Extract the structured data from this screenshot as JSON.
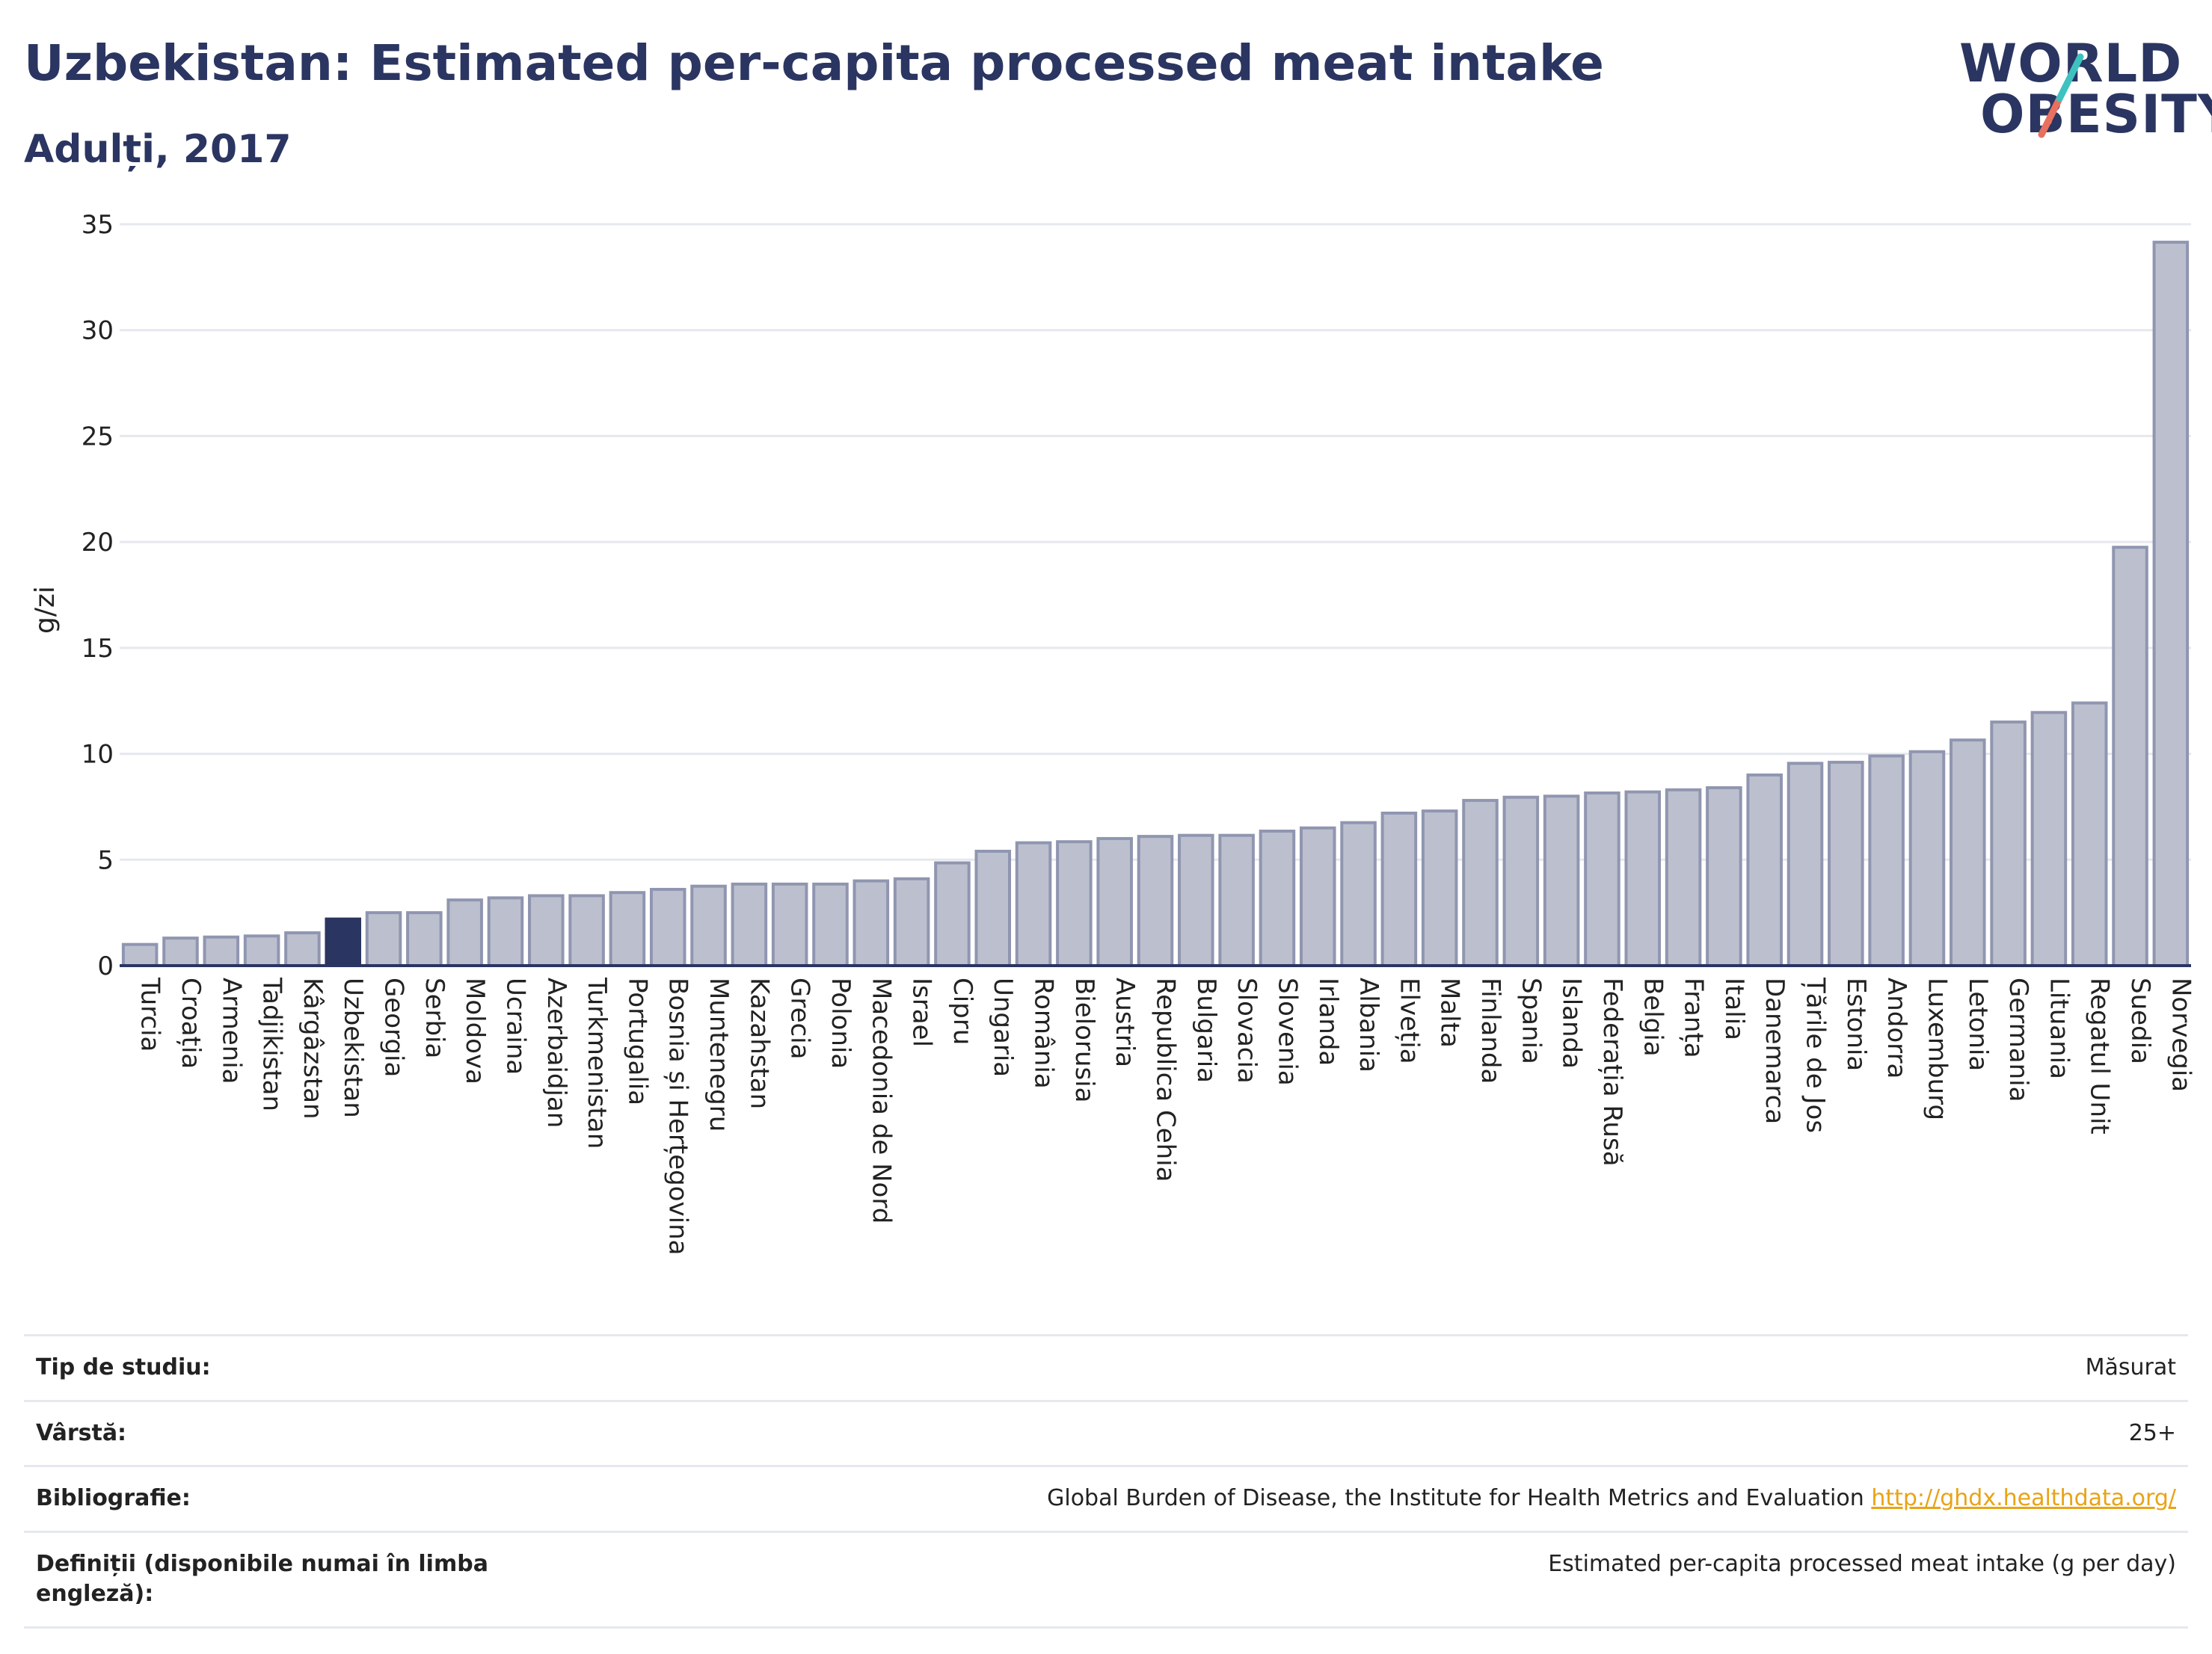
{
  "header": {
    "title": "Uzbekistan: Estimated per-capita processed meat intake",
    "subtitle": "Adulți, 2017"
  },
  "logo": {
    "line1": "WORLD",
    "line2": "OBESITY",
    "slash_colors": [
      "#3ec2c0",
      "#e8705e"
    ]
  },
  "colors": {
    "bar": "#bcc0ce",
    "bar_stroke": "#9096b0",
    "highlight": "#2b3561",
    "grid": "#e6e8ef",
    "axis": "#2b3561",
    "link": "#e8a317"
  },
  "chart_data": {
    "type": "bar",
    "ylabel": "g/zi",
    "ylim": [
      0,
      35
    ],
    "yticks": [
      0,
      5,
      10,
      15,
      20,
      25,
      30,
      35
    ],
    "grid": true,
    "highlight": "Uzbekistan",
    "categories": [
      "Turcia",
      "Croația",
      "Armenia",
      "Tadjikistan",
      "Kârgâzstan",
      "Uzbekistan",
      "Georgia",
      "Serbia",
      "Moldova",
      "Ucraina",
      "Azerbaidjan",
      "Turkmenistan",
      "Portugalia",
      "Bosnia și Herțegovina",
      "Muntenegru",
      "Kazahstan",
      "Grecia",
      "Polonia",
      "Macedonia de Nord",
      "Israel",
      "Cipru",
      "Ungaria",
      "România",
      "Bielorusia",
      "Austria",
      "Republica Cehia",
      "Bulgaria",
      "Slovacia",
      "Slovenia",
      "Irlanda",
      "Albania",
      "Elveția",
      "Malta",
      "Finlanda",
      "Spania",
      "Islanda",
      "Federația Rusă",
      "Belgia",
      "Franța",
      "Italia",
      "Danemarca",
      "Țările de Jos",
      "Estonia",
      "Andorra",
      "Luxemburg",
      "Letonia",
      "Germania",
      "Lituania",
      "Regatul Unit",
      "Suedia",
      "Norvegia"
    ],
    "values": [
      1.0,
      1.3,
      1.35,
      1.4,
      1.55,
      2.2,
      2.5,
      2.5,
      3.1,
      3.2,
      3.3,
      3.3,
      3.45,
      3.6,
      3.75,
      3.85,
      3.85,
      3.85,
      4.0,
      4.1,
      4.85,
      5.4,
      5.8,
      5.85,
      6.0,
      6.1,
      6.15,
      6.15,
      6.35,
      6.5,
      6.75,
      7.2,
      7.3,
      7.8,
      7.95,
      8.0,
      8.15,
      8.2,
      8.3,
      8.4,
      9.0,
      9.55,
      9.6,
      9.9,
      10.1,
      10.65,
      11.5,
      11.95,
      12.4,
      19.75,
      34.15
    ]
  },
  "info": {
    "rows": [
      {
        "key": "Tip de studiu:",
        "value": "Măsurat"
      },
      {
        "key": "Vârstă:",
        "value": "25+"
      },
      {
        "key": "Bibliografie:",
        "value": "Global Burden of Disease, the Institute for Health Metrics and Evaluation",
        "link": "http://ghdx.healthdata.org/"
      },
      {
        "key": "Definiții (disponibile numai în limba engleză):",
        "value": "Estimated per-capita processed meat intake (g per day)"
      }
    ]
  }
}
